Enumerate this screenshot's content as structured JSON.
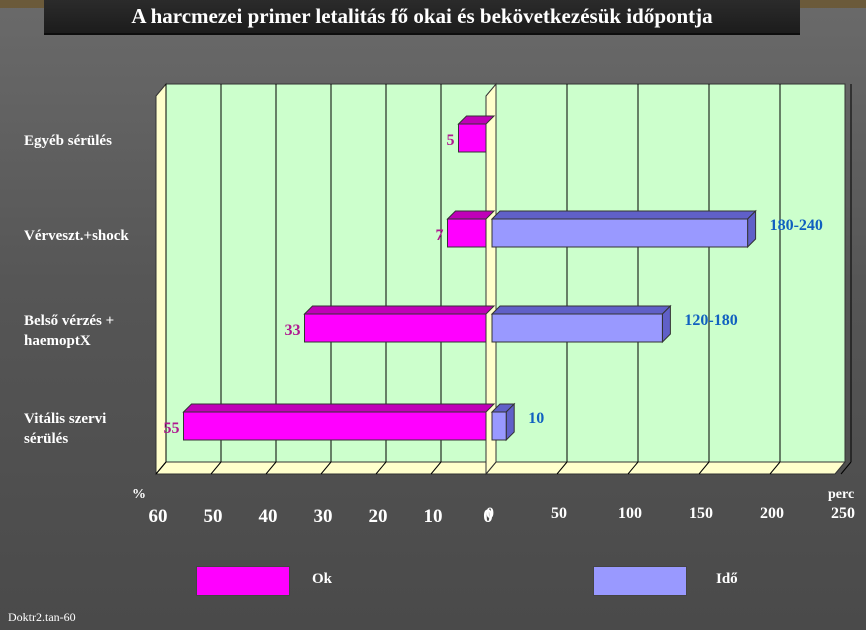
{
  "title": "A harcmezei primer letalitás fő okai és bekövetkezésük időpontja",
  "footer": "Doktr2.tan-60",
  "colors": {
    "ok": "#ff00ff",
    "ok_top": "#c000b8",
    "ido": "#9999ff",
    "ido_top": "#6060c8",
    "plot_bg": "#ccffcc",
    "ok_label": "#b01890",
    "ido_label": "#1060c0"
  },
  "chart_data": {
    "type": "bar",
    "orientation": "horizontal-butterfly",
    "categories": [
      "Egyéb sérülés",
      "Vérveszt.+shock",
      "Belső vérzés + haemoptX",
      "Vitális szervi sérülés"
    ],
    "category_labels": [
      [
        "Egyéb sérülés"
      ],
      [
        "Vérveszt.+shock"
      ],
      [
        "Belső vérzés +",
        "haemoptX"
      ],
      [
        "Vitális szervi",
        "sérülés"
      ]
    ],
    "series": [
      {
        "name": "Ok",
        "values": [
          5,
          7,
          33,
          55
        ],
        "labels": [
          "5",
          "7",
          "33",
          "55"
        ],
        "unit": "%"
      },
      {
        "name": "Idő",
        "values": [
          null,
          180,
          120,
          10
        ],
        "labels": [
          "",
          "180-240",
          "120-180",
          "10"
        ],
        "unit": "perc"
      }
    ],
    "left_axis": {
      "label": "%",
      "ticks": [
        60,
        50,
        40,
        30,
        20,
        10,
        0
      ],
      "range": [
        0,
        60
      ]
    },
    "right_axis": {
      "label": "perc",
      "ticks": [
        0,
        50,
        100,
        150,
        200,
        250
      ],
      "range": [
        0,
        250
      ]
    },
    "grid": true,
    "legend_position": "bottom"
  },
  "legend": {
    "ok": "Ok",
    "ido": "Idő"
  }
}
